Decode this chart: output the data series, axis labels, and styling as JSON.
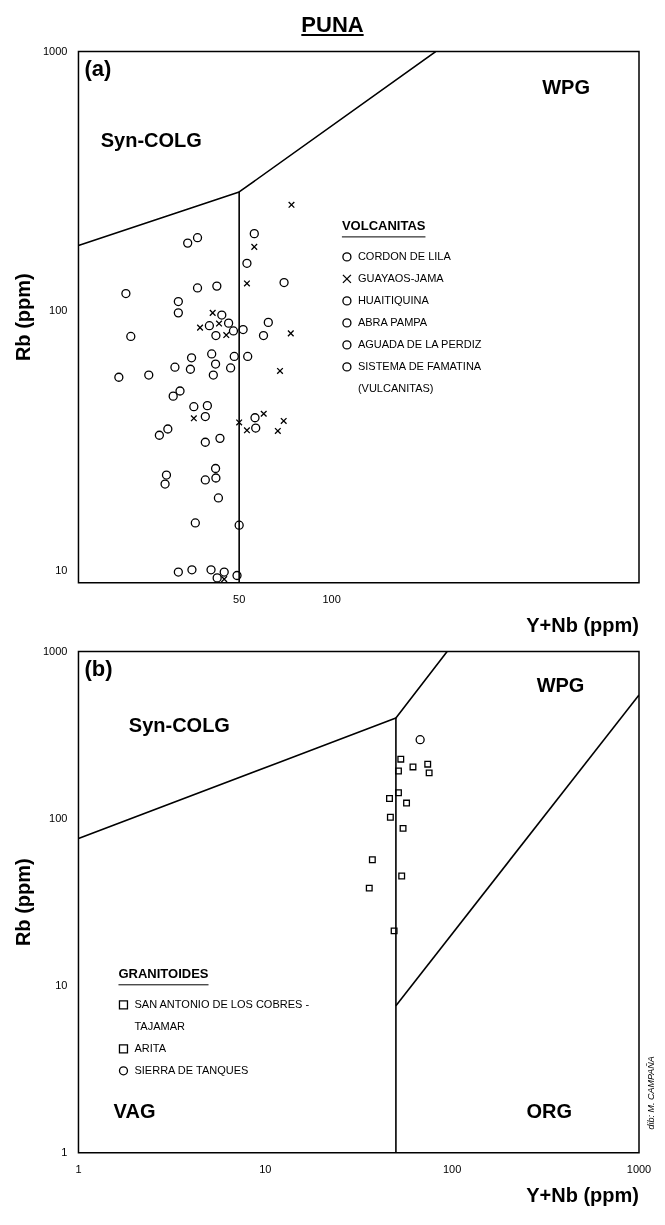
{
  "chart_data": [
    {
      "type": "scatter",
      "title": "PUNA",
      "subtitle": "(a)",
      "xlabel": "Y+Nb (ppm)",
      "ylabel": "Rb (ppm)",
      "legend_title": "VOLCANITAS",
      "legend": "right",
      "log": "xy",
      "grid": false,
      "xlim": [
        15,
        1000
      ],
      "xticks": [
        50,
        100
      ],
      "ylim": [
        9,
        1000
      ],
      "yticks": [
        10,
        100,
        1000
      ],
      "annotations": [
        "WPG",
        "Syn-COLG"
      ],
      "series": [
        {
          "type": "line",
          "color": "#000000",
          "x": [
            15,
            50,
            218
          ],
          "values": [
            179,
            288,
            1000
          ]
        },
        {
          "type": "line",
          "color": "#000000",
          "x": [
            50,
            50
          ],
          "values": [
            288,
            9
          ]
        },
        {
          "name": "CORDON DE LILA",
          "marker": "circle",
          "color": "#000000",
          "x": [
            53.3,
            35.6,
            27.5,
            28.7,
            42.8,
            42.4,
            49.2
          ],
          "values": [
            67,
            42.9,
            33.3,
            21.6,
            19.1,
            9.4,
            9.6
          ]
        },
        {
          "name": "GUAYAOS-JAMA",
          "marker": "cross",
          "color": "#000000",
          "x": [
            74,
            56,
            53,
            41,
            37.3,
            43,
            45.4,
            73.6,
            67.9,
            35.6,
            50,
            60.1,
            69.8,
            53,
            66.8,
            44.7
          ],
          "values": [
            257,
            177,
            128,
            98.6,
            86.5,
            89.7,
            81,
            82.2,
            58.9,
            38.7,
            37.3,
            40.3,
            37.8,
            34.8,
            34.6,
            9.3
          ]
        },
        {
          "name": "HUAITIQUINA",
          "marker": "circle",
          "color": "#000000",
          "x": [
            56.3,
            56.6,
            41.9,
            42
          ],
          "values": [
            38.9,
            35.5,
            24.8,
            22.8
          ]
        },
        {
          "name": "ABRA PAMPA",
          "marker": "circle",
          "color": "#000000",
          "x": [
            36.6,
            53,
            70,
            39.4
          ],
          "values": [
            192,
            153,
            129,
            43.3
          ]
        },
        {
          "name": "AGUADA DE LA PERDIZ",
          "marker": "circle",
          "color": "#000000",
          "x": [
            56,
            34,
            31.7,
            47.9
          ],
          "values": [
            199,
            183,
            98.6,
            84
          ]
        },
        {
          "name": "SISTEMA DE FAMATINA (VULCANITAS)",
          "marker": "circle",
          "color": "#000000",
          "x": [
            21.4,
            36.6,
            42.3,
            31.7,
            43.9,
            40,
            46.2,
            51.5,
            42,
            62.2,
            60,
            22.2,
            48.2,
            40.7,
            35,
            41.9,
            30.9,
            34.7,
            46.9,
            41.2,
            25.4,
            20.3,
            32.1,
            30.5,
            38.8,
            29.3,
            38.8,
            43.3,
            29,
            38.8,
            36,
            50,
            31.7,
            35.1,
            40.5,
            44.7
          ],
          "values": [
            117,
            123,
            125,
            109,
            96.7,
            88,
            90,
            85,
            80.6,
            90.6,
            80.6,
            80,
            67,
            68.5,
            66.2,
            62.6,
            60.9,
            59.8,
            60.5,
            56.8,
            56.8,
            55.7,
            49.3,
            47.1,
            39.3,
            35.2,
            31.3,
            32.4,
            23.4,
            22.4,
            15.3,
            15,
            9.9,
            10.1,
            10.1,
            9.9
          ]
        }
      ]
    },
    {
      "type": "scatter",
      "subtitle": "(b)",
      "xlabel": "Y+Nb (ppm)",
      "ylabel": "Rb (ppm)",
      "legend_title": "GRANITOIDES",
      "legend": "bottom left",
      "log": "xy",
      "grid": false,
      "xlim": [
        1,
        1000
      ],
      "xticks": [
        1,
        10,
        100,
        1000
      ],
      "ylim": [
        1,
        1000
      ],
      "yticks": [
        1,
        10,
        100,
        1000
      ],
      "annotations": [
        "WPG",
        "Syn-COLG",
        "VAG",
        "ORG",
        "dib: M. CAMPAÑA"
      ],
      "series": [
        {
          "type": "line",
          "color": "#000000",
          "x": [
            1,
            50,
            94
          ],
          "values": [
            76,
            400,
            1000
          ]
        },
        {
          "type": "line",
          "color": "#000000",
          "x": [
            50,
            50
          ],
          "values": [
            400,
            1
          ]
        },
        {
          "type": "line",
          "color": "#000000",
          "x": [
            50,
            1000
          ],
          "values": [
            7.6,
            550
          ]
        },
        {
          "name": "SAN ANTONIO DE LOS COBRES - TAJAMAR",
          "marker": "square",
          "color": "#000000",
          "x": [
            53.1,
            51.6,
            57,
            54.6,
            37.4,
            53.7,
            36,
            48.9
          ],
          "values": [
            227,
            193,
            124,
            87.5,
            56.8,
            45.4,
            38.4,
            21.3
          ]
        },
        {
          "name": "ARITA",
          "marker": "square",
          "color": "#000000",
          "x": [
            61.7,
            74,
            75.3,
            51.6,
            46.2,
            46.7
          ],
          "values": [
            204,
            212,
            188,
            143,
            132,
            102
          ]
        },
        {
          "name": "SIERRA DE TANQUES",
          "marker": "circle",
          "color": "#000000",
          "x": [
            67.4
          ],
          "values": [
            297
          ]
        }
      ]
    }
  ]
}
